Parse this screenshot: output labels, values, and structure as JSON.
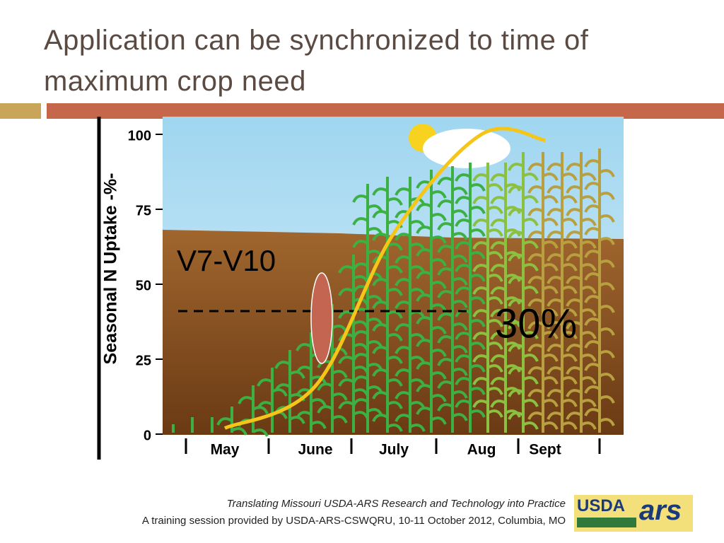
{
  "slide_title": "Application can be synchronized to time of maximum crop need",
  "chart_data": {
    "type": "line",
    "y_label": "Seasonal N Uptake -%-",
    "categories": [
      "May",
      "June",
      "July",
      "Aug",
      "Sept"
    ],
    "series": [
      {
        "name": null,
        "color": "#f5c518",
        "values": [
          2,
          16,
          67,
          100,
          98
        ]
      }
    ],
    "ylim": [
      0,
      100
    ],
    "yticks": [
      0,
      25,
      50,
      75,
      100
    ],
    "annotations": [
      "V7-V10",
      "30%"
    ]
  },
  "footer": {
    "line1": "Translating Missouri USDA-ARS Research and Technology into Practice",
    "line2": "A training session provided by USDA-ARS-CSWQRU, 10-11 October 2012, Columbia, MO"
  },
  "logo": {
    "usda": "USDA",
    "ars": "ars"
  }
}
